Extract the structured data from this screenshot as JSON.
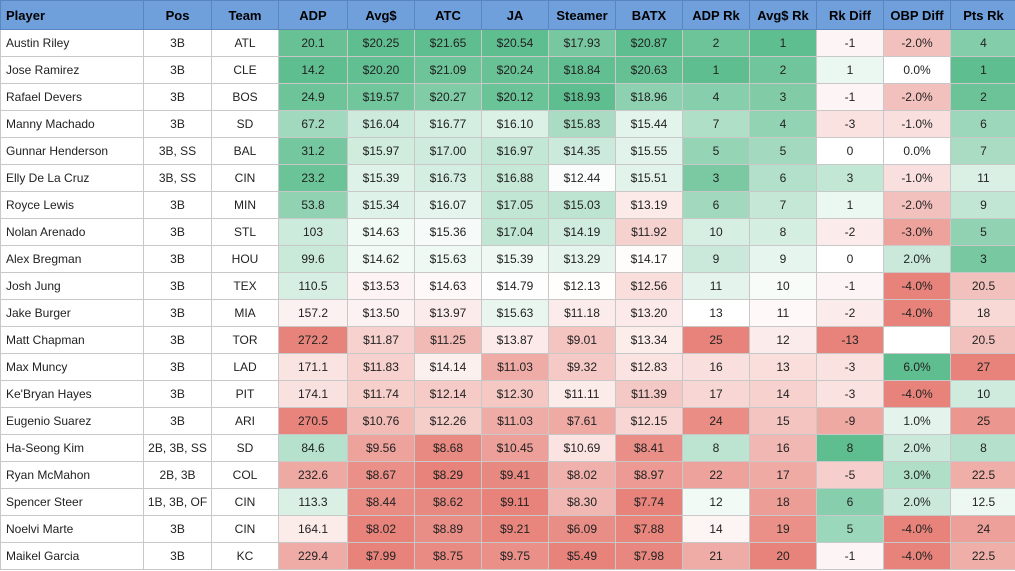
{
  "headers": [
    "Player",
    "Pos",
    "Team",
    "ADP",
    "Avg$",
    "ATC",
    "JA",
    "Steamer",
    "BATX",
    "ADP Rk",
    "Avg$ Rk",
    "Rk Diff",
    "OBP Diff",
    "Pts Rk"
  ],
  "rows": [
    [
      "Austin Riley",
      "3B",
      "ATL",
      "20.1",
      "$20.25",
      "$21.65",
      "$20.54",
      "$17.93",
      "$20.87",
      "2",
      "1",
      "-1",
      "-2.0%",
      "4"
    ],
    [
      "Jose Ramirez",
      "3B",
      "CLE",
      "14.2",
      "$20.20",
      "$21.09",
      "$20.24",
      "$18.84",
      "$20.63",
      "1",
      "2",
      "1",
      "0.0%",
      "1"
    ],
    [
      "Rafael Devers",
      "3B",
      "BOS",
      "24.9",
      "$19.57",
      "$20.27",
      "$20.12",
      "$18.93",
      "$18.96",
      "4",
      "3",
      "-1",
      "-2.0%",
      "2"
    ],
    [
      "Manny Machado",
      "3B",
      "SD",
      "67.2",
      "$16.04",
      "$16.77",
      "$16.10",
      "$15.83",
      "$15.44",
      "7",
      "4",
      "-3",
      "-1.0%",
      "6"
    ],
    [
      "Gunnar Henderson",
      "3B, SS",
      "BAL",
      "31.2",
      "$15.97",
      "$17.00",
      "$16.97",
      "$14.35",
      "$15.55",
      "5",
      "5",
      "0",
      "0.0%",
      "7"
    ],
    [
      "Elly De La Cruz",
      "3B, SS",
      "CIN",
      "23.2",
      "$15.39",
      "$16.73",
      "$16.88",
      "$12.44",
      "$15.51",
      "3",
      "6",
      "3",
      "-1.0%",
      "11"
    ],
    [
      "Royce Lewis",
      "3B",
      "MIN",
      "53.8",
      "$15.34",
      "$16.07",
      "$17.05",
      "$15.03",
      "$13.19",
      "6",
      "7",
      "1",
      "-2.0%",
      "9"
    ],
    [
      "Nolan Arenado",
      "3B",
      "STL",
      "103",
      "$14.63",
      "$15.36",
      "$17.04",
      "$14.19",
      "$11.92",
      "10",
      "8",
      "-2",
      "-3.0%",
      "5"
    ],
    [
      "Alex Bregman",
      "3B",
      "HOU",
      "99.6",
      "$14.62",
      "$15.63",
      "$15.39",
      "$13.29",
      "$14.17",
      "9",
      "9",
      "0",
      "2.0%",
      "3"
    ],
    [
      "Josh Jung",
      "3B",
      "TEX",
      "110.5",
      "$13.53",
      "$14.63",
      "$14.79",
      "$12.13",
      "$12.56",
      "11",
      "10",
      "-1",
      "-4.0%",
      "20.5"
    ],
    [
      "Jake Burger",
      "3B",
      "MIA",
      "157.2",
      "$13.50",
      "$13.97",
      "$15.63",
      "$11.18",
      "$13.20",
      "13",
      "11",
      "-2",
      "-4.0%",
      "18"
    ],
    [
      "Matt Chapman",
      "3B",
      "TOR",
      "272.2",
      "$11.87",
      "$11.25",
      "$13.87",
      "$9.01",
      "$13.34",
      "25",
      "12",
      "-13",
      "",
      "20.5"
    ],
    [
      "Max Muncy",
      "3B",
      "LAD",
      "171.1",
      "$11.83",
      "$14.14",
      "$11.03",
      "$9.32",
      "$12.83",
      "16",
      "13",
      "-3",
      "6.0%",
      "27"
    ],
    [
      "Ke'Bryan Hayes",
      "3B",
      "PIT",
      "174.1",
      "$11.74",
      "$12.14",
      "$12.30",
      "$11.11",
      "$11.39",
      "17",
      "14",
      "-3",
      "-4.0%",
      "10"
    ],
    [
      "Eugenio Suarez",
      "3B",
      "ARI",
      "270.5",
      "$10.76",
      "$12.26",
      "$11.03",
      "$7.61",
      "$12.15",
      "24",
      "15",
      "-9",
      "1.0%",
      "25"
    ],
    [
      "Ha-Seong Kim",
      "2B, 3B, SS",
      "SD",
      "84.6",
      "$9.56",
      "$8.68",
      "$10.45",
      "$10.69",
      "$8.41",
      "8",
      "16",
      "8",
      "2.0%",
      "8"
    ],
    [
      "Ryan McMahon",
      "2B, 3B",
      "COL",
      "232.6",
      "$8.67",
      "$8.29",
      "$9.41",
      "$8.02",
      "$8.97",
      "22",
      "17",
      "-5",
      "3.0%",
      "22.5"
    ],
    [
      "Spencer Steer",
      "1B, 3B, OF",
      "CIN",
      "113.3",
      "$8.44",
      "$8.62",
      "$9.11",
      "$8.30",
      "$7.74",
      "12",
      "18",
      "6",
      "2.0%",
      "12.5"
    ],
    [
      "Noelvi Marte",
      "3B",
      "CIN",
      "164.1",
      "$8.02",
      "$8.89",
      "$9.21",
      "$6.09",
      "$7.88",
      "14",
      "19",
      "5",
      "-4.0%",
      "24"
    ],
    [
      "Maikel Garcia",
      "3B",
      "KC",
      "229.4",
      "$7.99",
      "$8.75",
      "$9.75",
      "$5.49",
      "$7.98",
      "21",
      "20",
      "-1",
      "-4.0%",
      "22.5"
    ]
  ],
  "colors": {
    "header_bg": "#6fa0dc",
    "scale_high": "#57bb8a",
    "scale_mid": "#ffffff",
    "scale_low": "#e67c73"
  }
}
